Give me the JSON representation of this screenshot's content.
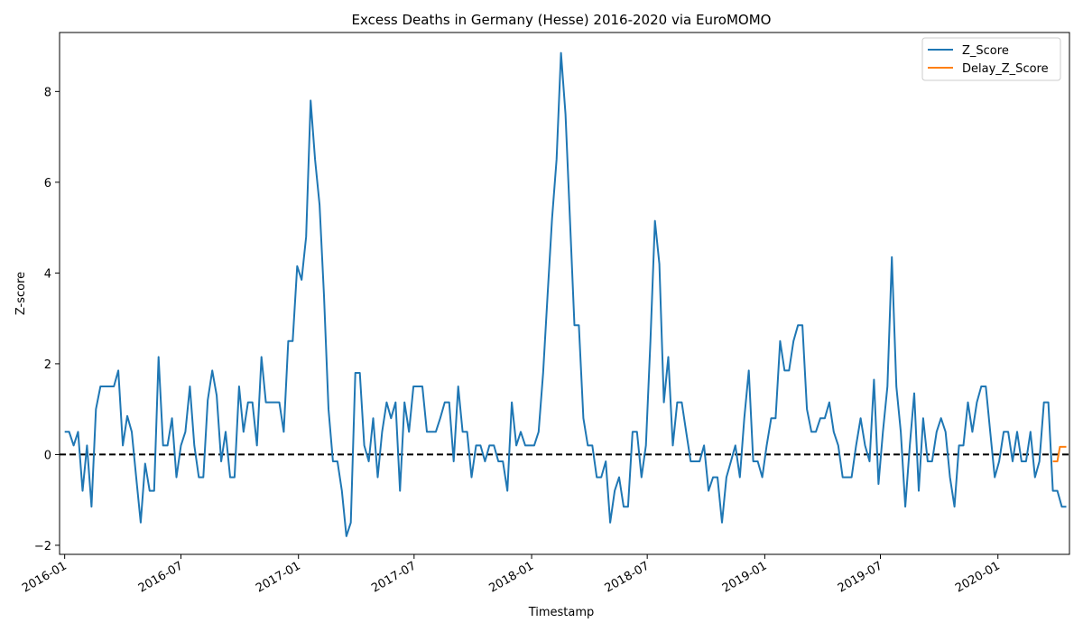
{
  "chart_data": {
    "type": "line",
    "title": "Excess Deaths in Germany (Hesse) 2016-2020 via EuroMOMO",
    "xlabel": "Timestamp",
    "ylabel": "Z-score",
    "ylim": [
      -2.2,
      9.3
    ],
    "xlim": [
      "2015-12-24",
      "2020-04-22"
    ],
    "x_ticks": [
      "2016-01",
      "2016-07",
      "2017-01",
      "2017-07",
      "2018-01",
      "2018-07",
      "2019-01",
      "2019-07",
      "2020-01"
    ],
    "y_ticks": [
      -2,
      0,
      2,
      4,
      6,
      8
    ],
    "grid": false,
    "legend": "top-right",
    "reference_line": {
      "y": 0,
      "style": "dashed",
      "color": "#000000"
    },
    "series": [
      {
        "name": "Z_Score",
        "color": "#1f77b4",
        "points": [
          [
            "2016-01-01",
            0.5
          ],
          [
            "2016-01-08",
            0.5
          ],
          [
            "2016-01-15",
            0.2
          ],
          [
            "2016-01-22",
            0.5
          ],
          [
            "2016-01-29",
            -0.8
          ],
          [
            "2016-02-05",
            0.2
          ],
          [
            "2016-02-12",
            -1.15
          ],
          [
            "2016-02-19",
            1.0
          ],
          [
            "2016-02-26",
            1.5
          ],
          [
            "2016-03-04",
            1.5
          ],
          [
            "2016-03-11",
            1.5
          ],
          [
            "2016-03-18",
            1.5
          ],
          [
            "2016-03-25",
            1.85
          ],
          [
            "2016-04-01",
            0.2
          ],
          [
            "2016-04-08",
            0.85
          ],
          [
            "2016-04-15",
            0.5
          ],
          [
            "2016-04-22",
            -0.5
          ],
          [
            "2016-04-29",
            -1.5
          ],
          [
            "2016-05-06",
            -0.2
          ],
          [
            "2016-05-13",
            -0.8
          ],
          [
            "2016-05-20",
            -0.8
          ],
          [
            "2016-05-27",
            2.15
          ],
          [
            "2016-06-03",
            0.2
          ],
          [
            "2016-06-10",
            0.2
          ],
          [
            "2016-06-17",
            0.8
          ],
          [
            "2016-06-24",
            -0.5
          ],
          [
            "2016-07-01",
            0.2
          ],
          [
            "2016-07-08",
            0.5
          ],
          [
            "2016-07-15",
            1.5
          ],
          [
            "2016-07-22",
            0.2
          ],
          [
            "2016-07-29",
            -0.5
          ],
          [
            "2016-08-05",
            -0.5
          ],
          [
            "2016-08-12",
            1.2
          ],
          [
            "2016-08-19",
            1.85
          ],
          [
            "2016-08-26",
            1.3
          ],
          [
            "2016-09-02",
            -0.15
          ],
          [
            "2016-09-09",
            0.5
          ],
          [
            "2016-09-16",
            -0.5
          ],
          [
            "2016-09-23",
            -0.5
          ],
          [
            "2016-09-30",
            1.5
          ],
          [
            "2016-10-07",
            0.5
          ],
          [
            "2016-10-14",
            1.15
          ],
          [
            "2016-10-21",
            1.15
          ],
          [
            "2016-10-28",
            0.2
          ],
          [
            "2016-11-04",
            2.15
          ],
          [
            "2016-11-11",
            1.15
          ],
          [
            "2016-11-18",
            1.15
          ],
          [
            "2016-11-25",
            1.15
          ],
          [
            "2016-12-02",
            1.15
          ],
          [
            "2016-12-09",
            0.5
          ],
          [
            "2016-12-16",
            2.5
          ],
          [
            "2016-12-23",
            2.5
          ],
          [
            "2016-12-30",
            4.15
          ],
          [
            "2017-01-06",
            3.85
          ],
          [
            "2017-01-13",
            4.8
          ],
          [
            "2017-01-20",
            7.8
          ],
          [
            "2017-01-27",
            6.5
          ],
          [
            "2017-02-03",
            5.5
          ],
          [
            "2017-02-10",
            3.5
          ],
          [
            "2017-02-17",
            1.0
          ],
          [
            "2017-02-24",
            -0.15
          ],
          [
            "2017-03-03",
            -0.15
          ],
          [
            "2017-03-10",
            -0.8
          ],
          [
            "2017-03-17",
            -1.8
          ],
          [
            "2017-03-24",
            -1.5
          ],
          [
            "2017-03-31",
            1.8
          ],
          [
            "2017-04-07",
            1.8
          ],
          [
            "2017-04-14",
            0.2
          ],
          [
            "2017-04-21",
            -0.15
          ],
          [
            "2017-04-28",
            0.8
          ],
          [
            "2017-05-05",
            -0.5
          ],
          [
            "2017-05-12",
            0.5
          ],
          [
            "2017-05-19",
            1.15
          ],
          [
            "2017-05-26",
            0.8
          ],
          [
            "2017-06-02",
            1.15
          ],
          [
            "2017-06-09",
            -0.8
          ],
          [
            "2017-06-16",
            1.15
          ],
          [
            "2017-06-23",
            0.5
          ],
          [
            "2017-06-30",
            1.5
          ],
          [
            "2017-07-07",
            1.5
          ],
          [
            "2017-07-14",
            1.5
          ],
          [
            "2017-07-21",
            0.5
          ],
          [
            "2017-07-28",
            0.5
          ],
          [
            "2017-08-04",
            0.5
          ],
          [
            "2017-08-11",
            0.8
          ],
          [
            "2017-08-18",
            1.15
          ],
          [
            "2017-08-25",
            1.15
          ],
          [
            "2017-09-01",
            -0.15
          ],
          [
            "2017-09-08",
            1.5
          ],
          [
            "2017-09-15",
            0.5
          ],
          [
            "2017-09-22",
            0.5
          ],
          [
            "2017-09-29",
            -0.5
          ],
          [
            "2017-10-06",
            0.2
          ],
          [
            "2017-10-13",
            0.2
          ],
          [
            "2017-10-20",
            -0.15
          ],
          [
            "2017-10-27",
            0.2
          ],
          [
            "2017-11-03",
            0.2
          ],
          [
            "2017-11-10",
            -0.15
          ],
          [
            "2017-11-17",
            -0.15
          ],
          [
            "2017-11-24",
            -0.8
          ],
          [
            "2017-12-01",
            1.15
          ],
          [
            "2017-12-08",
            0.2
          ],
          [
            "2017-12-15",
            0.5
          ],
          [
            "2017-12-22",
            0.2
          ],
          [
            "2017-12-29",
            0.2
          ],
          [
            "2018-01-05",
            0.2
          ],
          [
            "2018-01-12",
            0.5
          ],
          [
            "2018-01-19",
            1.8
          ],
          [
            "2018-01-26",
            3.5
          ],
          [
            "2018-02-02",
            5.2
          ],
          [
            "2018-02-09",
            6.5
          ],
          [
            "2018-02-16",
            8.85
          ],
          [
            "2018-02-23",
            7.5
          ],
          [
            "2018-03-02",
            5.2
          ],
          [
            "2018-03-09",
            2.85
          ],
          [
            "2018-03-16",
            2.85
          ],
          [
            "2018-03-23",
            0.8
          ],
          [
            "2018-03-30",
            0.2
          ],
          [
            "2018-04-06",
            0.2
          ],
          [
            "2018-04-13",
            -0.5
          ],
          [
            "2018-04-20",
            -0.5
          ],
          [
            "2018-04-27",
            -0.15
          ],
          [
            "2018-05-04",
            -1.5
          ],
          [
            "2018-05-11",
            -0.8
          ],
          [
            "2018-05-18",
            -0.5
          ],
          [
            "2018-05-25",
            -1.15
          ],
          [
            "2018-06-01",
            -1.15
          ],
          [
            "2018-06-08",
            0.5
          ],
          [
            "2018-06-15",
            0.5
          ],
          [
            "2018-06-22",
            -0.5
          ],
          [
            "2018-06-29",
            0.2
          ],
          [
            "2018-07-06",
            2.5
          ],
          [
            "2018-07-13",
            5.15
          ],
          [
            "2018-07-20",
            4.2
          ],
          [
            "2018-07-27",
            1.15
          ],
          [
            "2018-08-03",
            2.15
          ],
          [
            "2018-08-10",
            0.2
          ],
          [
            "2018-08-17",
            1.15
          ],
          [
            "2018-08-24",
            1.15
          ],
          [
            "2018-08-31",
            0.5
          ],
          [
            "2018-09-07",
            -0.15
          ],
          [
            "2018-09-14",
            -0.15
          ],
          [
            "2018-09-21",
            -0.15
          ],
          [
            "2018-09-28",
            0.2
          ],
          [
            "2018-10-05",
            -0.8
          ],
          [
            "2018-10-12",
            -0.5
          ],
          [
            "2018-10-19",
            -0.5
          ],
          [
            "2018-10-26",
            -1.5
          ],
          [
            "2018-11-02",
            -0.5
          ],
          [
            "2018-11-09",
            -0.15
          ],
          [
            "2018-11-16",
            0.2
          ],
          [
            "2018-11-23",
            -0.5
          ],
          [
            "2018-11-30",
            0.8
          ],
          [
            "2018-12-07",
            1.85
          ],
          [
            "2018-12-14",
            -0.15
          ],
          [
            "2018-12-21",
            -0.15
          ],
          [
            "2018-12-28",
            -0.5
          ],
          [
            "2019-01-04",
            0.2
          ],
          [
            "2019-01-11",
            0.8
          ],
          [
            "2019-01-18",
            0.8
          ],
          [
            "2019-01-25",
            2.5
          ],
          [
            "2019-02-01",
            1.85
          ],
          [
            "2019-02-08",
            1.85
          ],
          [
            "2019-02-15",
            2.5
          ],
          [
            "2019-02-22",
            2.85
          ],
          [
            "2019-03-01",
            2.85
          ],
          [
            "2019-03-08",
            1.0
          ],
          [
            "2019-03-15",
            0.5
          ],
          [
            "2019-03-22",
            0.5
          ],
          [
            "2019-03-29",
            0.8
          ],
          [
            "2019-04-05",
            0.8
          ],
          [
            "2019-04-12",
            1.15
          ],
          [
            "2019-04-19",
            0.5
          ],
          [
            "2019-04-26",
            0.2
          ],
          [
            "2019-05-03",
            -0.5
          ],
          [
            "2019-05-10",
            -0.5
          ],
          [
            "2019-05-17",
            -0.5
          ],
          [
            "2019-05-24",
            0.2
          ],
          [
            "2019-05-31",
            0.8
          ],
          [
            "2019-06-07",
            0.2
          ],
          [
            "2019-06-14",
            -0.15
          ],
          [
            "2019-06-21",
            1.65
          ],
          [
            "2019-06-28",
            -0.65
          ],
          [
            "2019-07-05",
            0.5
          ],
          [
            "2019-07-12",
            1.5
          ],
          [
            "2019-07-19",
            4.35
          ],
          [
            "2019-07-26",
            1.5
          ],
          [
            "2019-08-02",
            0.5
          ],
          [
            "2019-08-09",
            -1.15
          ],
          [
            "2019-08-16",
            0.2
          ],
          [
            "2019-08-23",
            1.35
          ],
          [
            "2019-08-30",
            -0.8
          ],
          [
            "2019-09-06",
            0.8
          ],
          [
            "2019-09-13",
            -0.15
          ],
          [
            "2019-09-20",
            -0.15
          ],
          [
            "2019-09-27",
            0.5
          ],
          [
            "2019-10-04",
            0.8
          ],
          [
            "2019-10-11",
            0.5
          ],
          [
            "2019-10-18",
            -0.5
          ],
          [
            "2019-10-25",
            -1.15
          ],
          [
            "2019-11-01",
            0.2
          ],
          [
            "2019-11-08",
            0.2
          ],
          [
            "2019-11-15",
            1.15
          ],
          [
            "2019-11-22",
            0.5
          ],
          [
            "2019-11-29",
            1.15
          ],
          [
            "2019-12-06",
            1.5
          ],
          [
            "2019-12-13",
            1.5
          ],
          [
            "2019-12-20",
            0.5
          ],
          [
            "2019-12-27",
            -0.5
          ],
          [
            "2020-01-03",
            -0.15
          ],
          [
            "2020-01-10",
            0.5
          ],
          [
            "2020-01-17",
            0.5
          ],
          [
            "2020-01-24",
            -0.15
          ],
          [
            "2020-01-31",
            0.5
          ],
          [
            "2020-02-07",
            -0.15
          ],
          [
            "2020-02-14",
            -0.15
          ],
          [
            "2020-02-21",
            0.5
          ],
          [
            "2020-02-28",
            -0.5
          ],
          [
            "2020-03-06",
            -0.15
          ],
          [
            "2020-03-13",
            1.15
          ],
          [
            "2020-03-20",
            1.15
          ],
          [
            "2020-03-27",
            -0.8
          ],
          [
            "2020-04-03",
            -0.8
          ],
          [
            "2020-04-10",
            -1.15
          ],
          [
            "2020-04-17",
            -1.15
          ]
        ]
      },
      {
        "name": "Delay_Z_Score",
        "color": "#ff7f0e",
        "points": [
          [
            "2020-03-27",
            -0.15
          ],
          [
            "2020-04-03",
            -0.15
          ],
          [
            "2020-04-07",
            0.17
          ],
          [
            "2020-04-17",
            0.17
          ]
        ]
      }
    ]
  }
}
